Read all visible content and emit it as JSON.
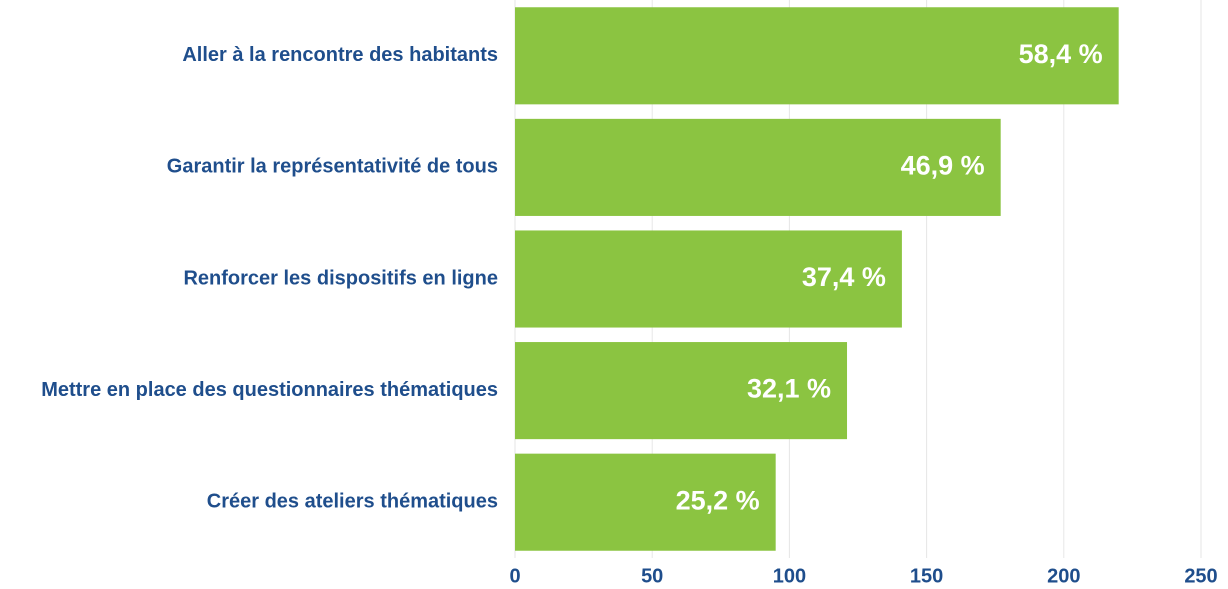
{
  "chart_data": {
    "type": "barh",
    "categories": [
      "Aller à la rencontre des habitants",
      "Garantir la représentativité de tous",
      "Renforcer les dispositifs en ligne",
      "Mettre en place des questionnaires thématiques",
      "Créer des ateliers thématiques"
    ],
    "values": [
      220,
      177,
      141,
      121,
      95
    ],
    "share_labels": [
      "58,4 %",
      "46,9 %",
      "37,4 %",
      "32,1 %",
      "25,2 %"
    ],
    "color": "#8bc441",
    "xlim": [
      0,
      250
    ],
    "xticks": [
      0,
      50,
      100,
      150,
      200,
      250
    ],
    "grid": true
  }
}
